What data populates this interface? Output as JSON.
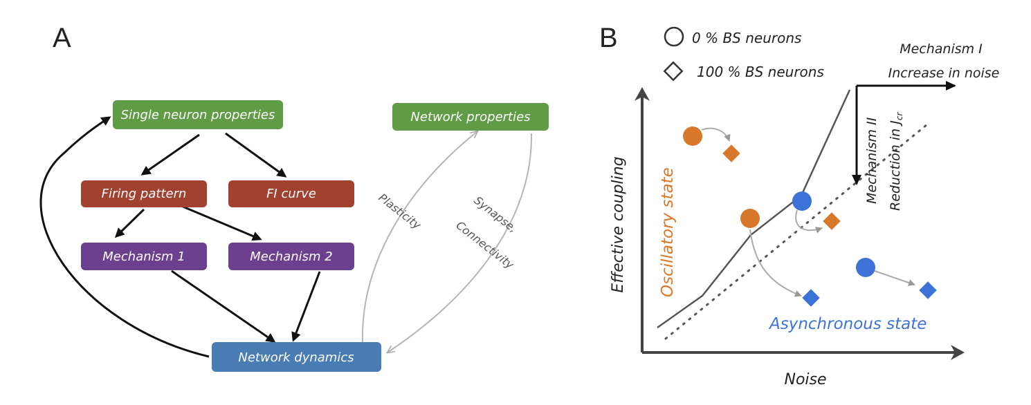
{
  "panel_a": {
    "letter": "A",
    "boxes": {
      "single_neuron": "Single neuron properties",
      "network_props": "Network properties",
      "firing_pattern": "Firing pattern",
      "fi_curve": "FI curve",
      "mechanism1": "Mechanism 1",
      "mechanism2": "Mechanism 2",
      "network_dynamics": "Network dynamics"
    },
    "labels": {
      "plasticity": "Plasticity",
      "synapse": "Synapse,",
      "connectivity": "Connectivity"
    },
    "colors": {
      "green": "#5f9c45",
      "red": "#a1412f",
      "purple": "#6d3f8f",
      "blue": "#4a7cb4"
    }
  },
  "panel_b": {
    "letter": "B",
    "legend": {
      "circle_label": "0 % BS neurons",
      "diamond_label": "100 % BS neurons"
    },
    "mechanism_1": {
      "title": "Mechanism I",
      "subtitle": "Increase in noise"
    },
    "mechanism_2": {
      "title": "Mechanism II",
      "subtitle": "Reduction in J",
      "subscript": "cr"
    },
    "x_label": "Noise",
    "y_label": "Effective coupling",
    "oscillatory_label": "Oscillatory state",
    "asynchronous_label": "Asynchronous state",
    "colors": {
      "oscillatory": "#d8782a",
      "asynchronous": "#3d72d6"
    }
  }
}
